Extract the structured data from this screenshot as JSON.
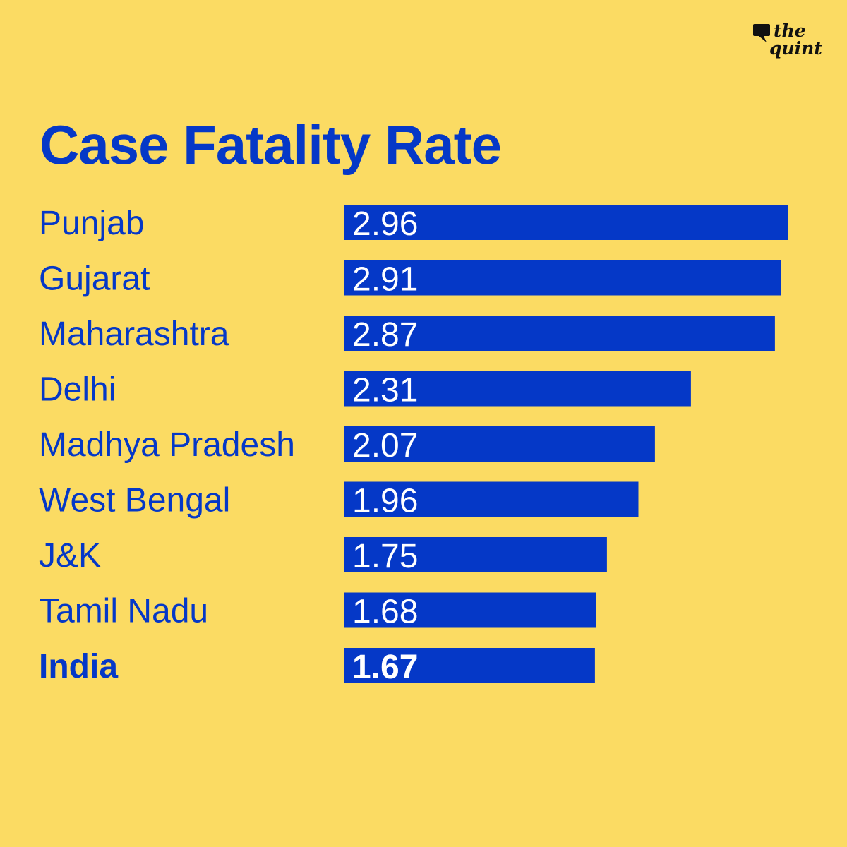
{
  "brand": {
    "logo_line1": "the",
    "logo_line2": "quint",
    "primary_color": "#0538c7",
    "background_color": "#fbdb63",
    "bar_label_color": "#ffffff",
    "logo_color": "#111111"
  },
  "chart_data": {
    "type": "bar",
    "orientation": "horizontal",
    "title": "Case Fatality Rate",
    "xlabel": "",
    "ylabel": "",
    "xlim": [
      0,
      2.96
    ],
    "grid": false,
    "legend": "none",
    "categories": [
      "Punjab",
      "Gujarat",
      "Maharashtra",
      "Delhi",
      "Madhya Pradesh",
      "West Bengal",
      "J&K",
      "Tamil Nadu",
      "India"
    ],
    "values": [
      2.96,
      2.91,
      2.87,
      2.31,
      2.07,
      1.96,
      1.75,
      1.68,
      1.67
    ],
    "labels": [
      "2.96",
      "2.91",
      "2.87",
      "2.31",
      "2.07",
      "1.96",
      "1.75",
      "1.68",
      "1.67"
    ],
    "highlighted": [
      "India"
    ]
  }
}
